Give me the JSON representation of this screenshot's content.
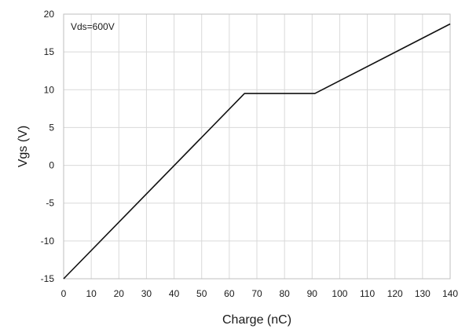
{
  "chart_data": {
    "type": "line",
    "xlabel": "Charge (nC)",
    "ylabel": "Vgs (V)",
    "xlim": [
      0,
      140
    ],
    "ylim": [
      -15,
      20
    ],
    "xticks": [
      0,
      10,
      20,
      30,
      40,
      50,
      60,
      70,
      80,
      90,
      100,
      110,
      120,
      130,
      140
    ],
    "yticks": [
      -15,
      -10,
      -5,
      0,
      5,
      10,
      15,
      20
    ],
    "grid": true,
    "annotation": "Vds=600V",
    "series": [
      {
        "color": "#111111",
        "x": [
          0,
          65.5,
          91,
          140
        ],
        "y": [
          -15,
          9.5,
          9.5,
          18.7
        ]
      }
    ]
  }
}
